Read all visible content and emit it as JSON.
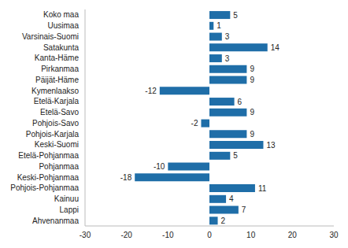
{
  "chart_data": {
    "type": "bar",
    "orientation": "horizontal",
    "categories": [
      "Koko maa",
      "Uusimaa",
      "Varsinais-Suomi",
      "Satakunta",
      "Kanta-Häme",
      "Pirkanmaa",
      "Päijät-Häme",
      "Kymenlaakso",
      "Etelä-Karjala",
      "Etelä-Savo",
      "Pohjois-Savo",
      "Pohjois-Karjala",
      "Keski-Suomi",
      "Etelä-Pohjanmaa",
      "Pohjanmaa",
      "Keski-Pohjanmaa",
      "Pohjois-Pohjanmaa",
      "Kainuu",
      "Lappi",
      "Ahvenanmaa"
    ],
    "values": [
      5,
      1,
      3,
      14,
      3,
      9,
      9,
      -12,
      6,
      9,
      -2,
      9,
      13,
      5,
      -10,
      -18,
      11,
      4,
      7,
      2
    ],
    "color": "#1f6ea8",
    "xlim": [
      -30,
      30
    ],
    "xticks": [
      -30,
      -20,
      -10,
      0,
      10,
      20,
      30
    ],
    "grid": false,
    "data_labels": true
  }
}
